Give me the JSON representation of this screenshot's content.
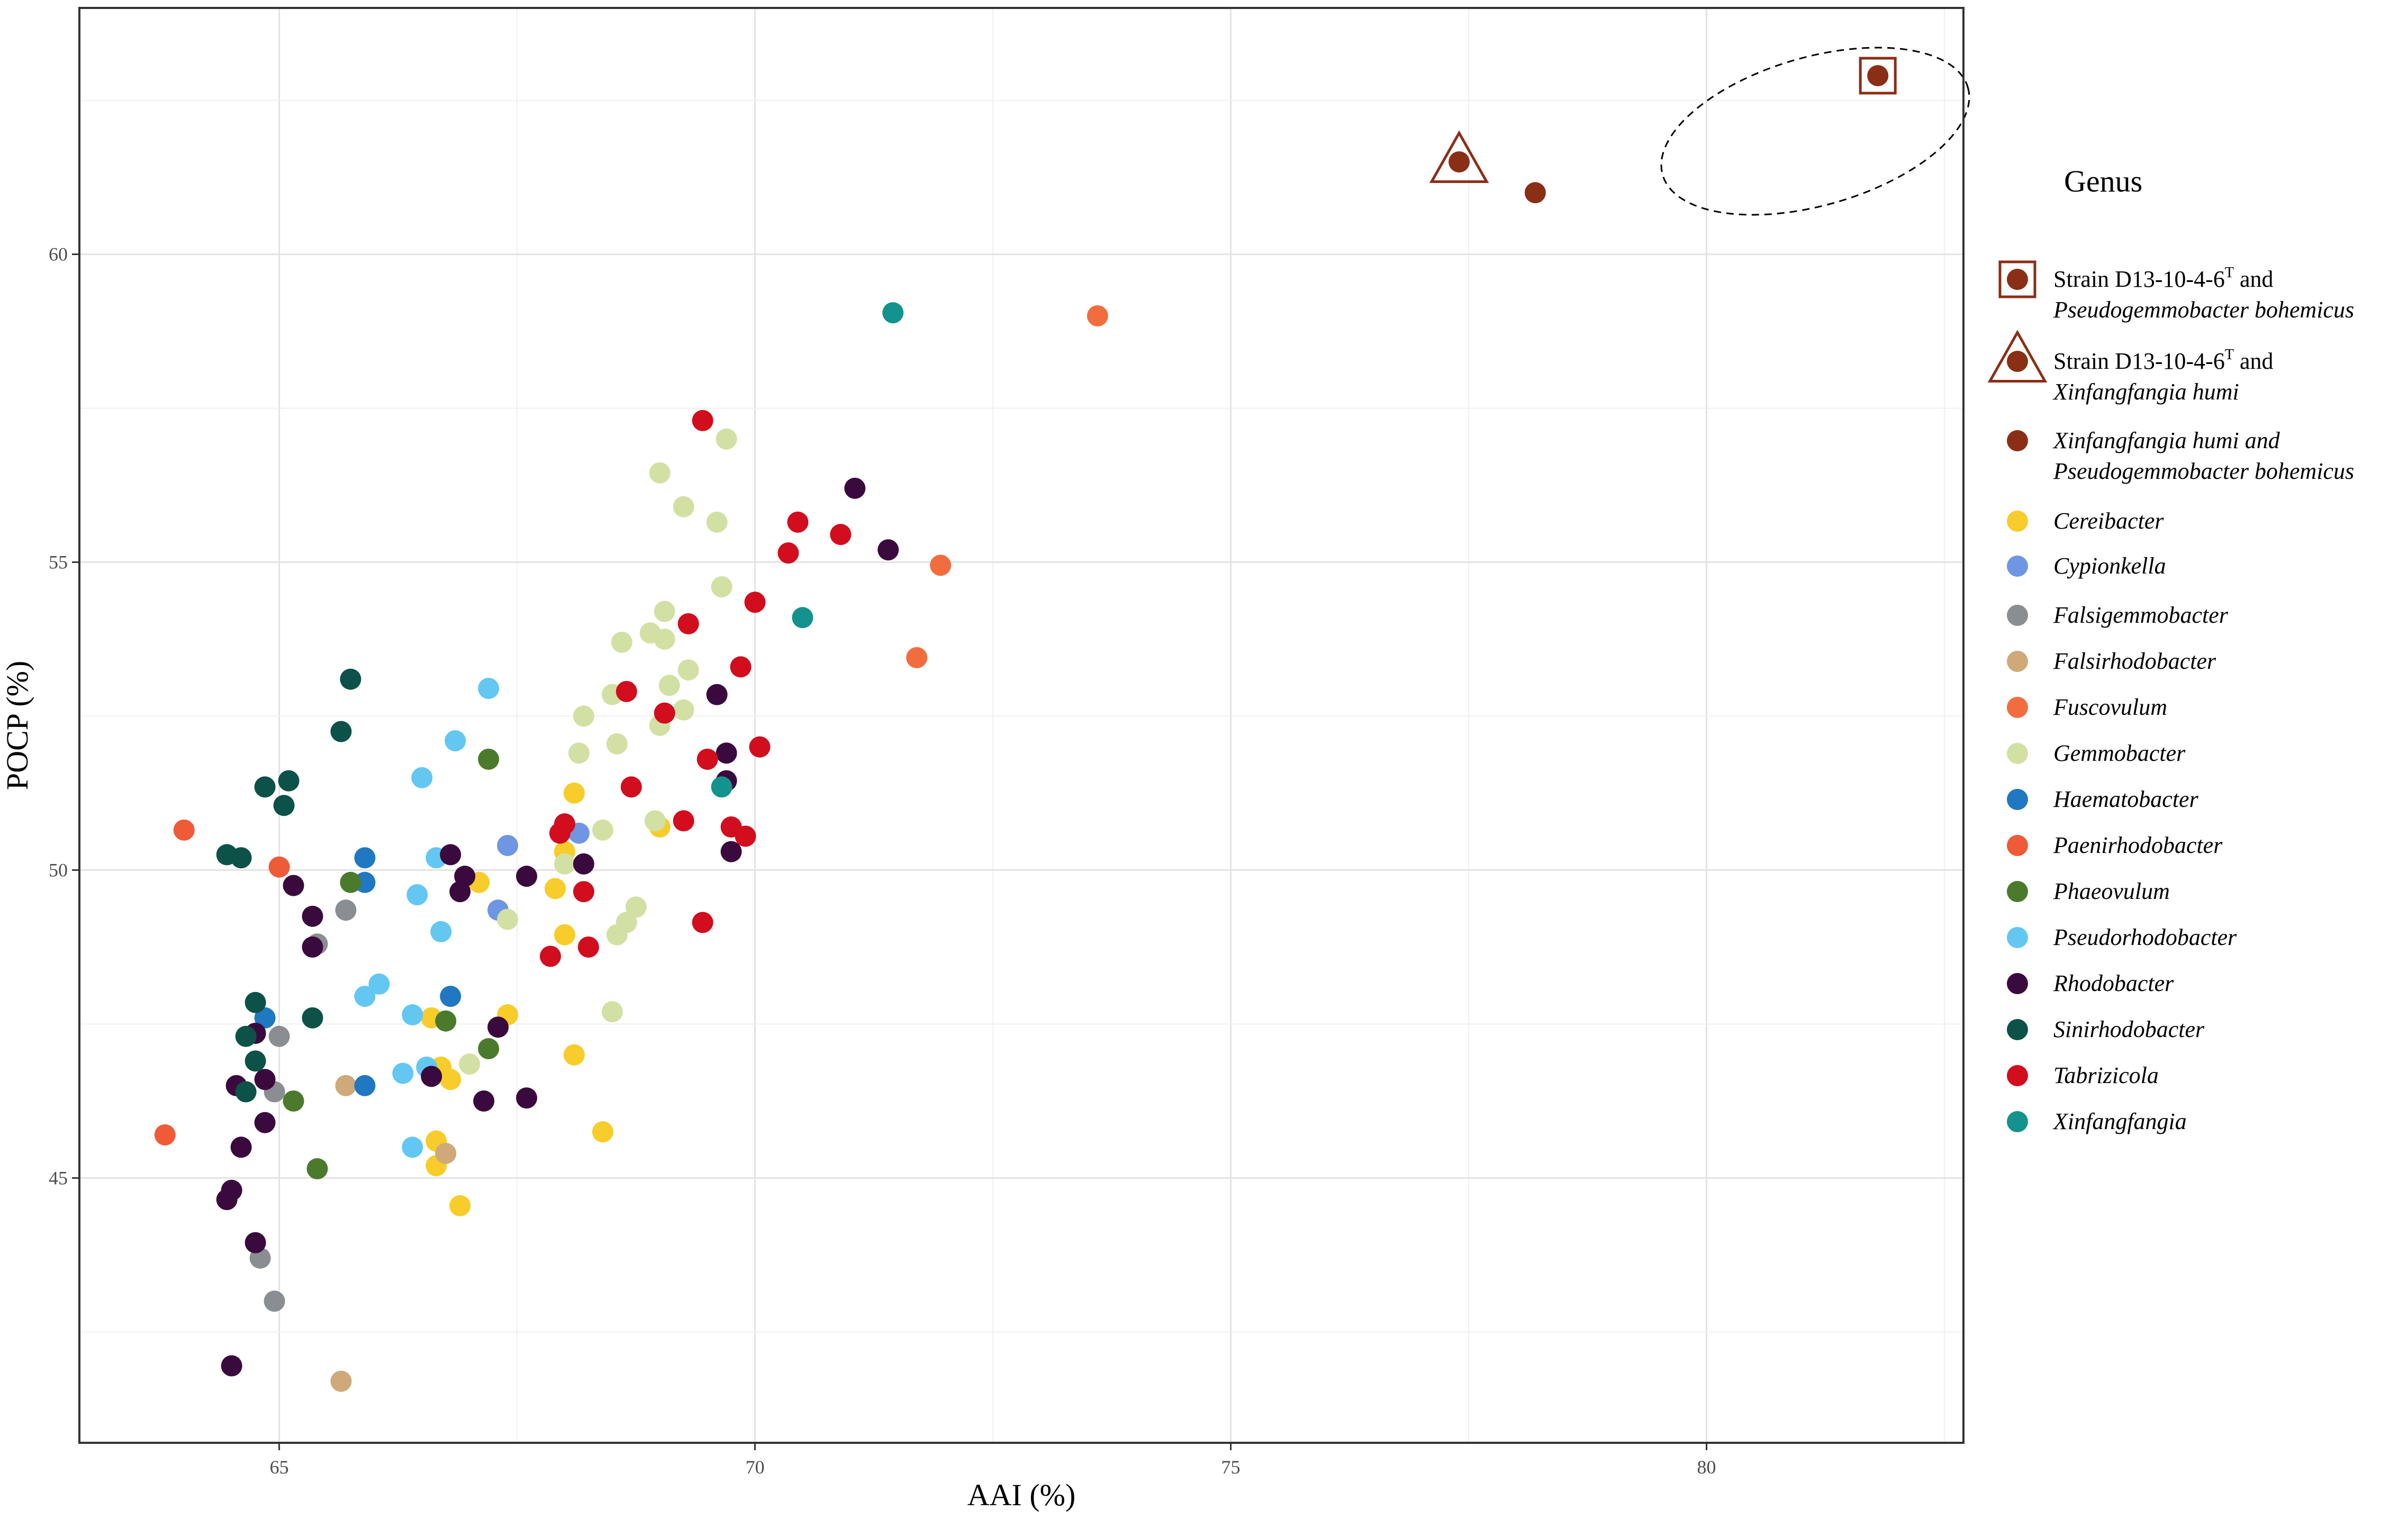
{
  "chart_data": {
    "type": "scatter",
    "xlabel": "AAI (%)",
    "ylabel": "POCP (%)",
    "xlim": [
      62.9,
      82.7
    ],
    "ylim": [
      40.7,
      64.0
    ],
    "xticks": [
      65,
      70,
      75,
      80
    ],
    "yticks": [
      45,
      50,
      55,
      60
    ],
    "grid": true,
    "legend": {
      "title": "Genus",
      "placement": "right",
      "entries": [
        {
          "marker": "square",
          "color": "#8b2e16",
          "line1": "Strain D13-10-4-6",
          "sup": "T",
          "line1_tail": " and",
          "line2": "Pseudogemmobacter bohemicus"
        },
        {
          "marker": "triangle",
          "color": "#8b2e16",
          "line1": "Strain D13-10-4-6",
          "sup": "T",
          "line1_tail": " and",
          "line2": "Xinfangfangia humi"
        },
        {
          "marker": "dot",
          "color": "#8b2e16",
          "line1": "Xinfangfangia humi and",
          "line2": "Pseudogemmobacter bohemicus"
        },
        {
          "marker": "dot",
          "color": "#f7cc2b",
          "line1": "Cereibacter"
        },
        {
          "marker": "dot",
          "color": "#6f96e2",
          "line1": "Cypionkella"
        },
        {
          "marker": "dot",
          "color": "#8a8d91",
          "line1": "Falsigemmobacter"
        },
        {
          "marker": "dot",
          "color": "#cfa97a",
          "line1": "Falsirhodobacter"
        },
        {
          "marker": "dot",
          "color": "#f26d3d",
          "line1": "Fuscovulum"
        },
        {
          "marker": "dot",
          "color": "#d3e0a3",
          "line1": "Gemmobacter"
        },
        {
          "marker": "dot",
          "color": "#1f78c1",
          "line1": "Haematobacter"
        },
        {
          "marker": "dot",
          "color": "#ef5a37",
          "line1": "Paenirhodobacter"
        },
        {
          "marker": "dot",
          "color": "#4b7a2c",
          "line1": "Phaeovulum"
        },
        {
          "marker": "dot",
          "color": "#63c7f2",
          "line1": "Pseudorhodobacter"
        },
        {
          "marker": "dot",
          "color": "#3a0a3e",
          "line1": "Rhodobacter"
        },
        {
          "marker": "dot",
          "color": "#0c5248",
          "line1": "Sinirhodobacter"
        },
        {
          "marker": "dot",
          "color": "#d10d1e",
          "line1": "Tabrizicola"
        },
        {
          "marker": "dot",
          "color": "#14928e",
          "line1": "Xinfangfangia"
        }
      ]
    },
    "series": [
      {
        "group": "Strain D13-10-4-6T and Pseudogemmobacter bohemicus",
        "color": "#8b2e16",
        "marker": "square",
        "points": [
          [
            81.8,
            62.9
          ]
        ]
      },
      {
        "group": "Strain D13-10-4-6T and Xinfangfangia humi",
        "color": "#8b2e16",
        "marker": "triangle",
        "points": [
          [
            77.4,
            61.5
          ]
        ]
      },
      {
        "group": "Xinfangfangia humi and Pseudogemmobacter bohemicus",
        "color": "#8b2e16",
        "marker": "dot",
        "points": [
          [
            78.2,
            61.0
          ]
        ]
      },
      {
        "group": "Cereibacter",
        "color": "#f7cc2b",
        "marker": "dot",
        "points": [
          [
            68.1,
            51.25
          ],
          [
            68.0,
            50.3
          ],
          [
            69.0,
            50.7
          ],
          [
            67.1,
            49.8
          ],
          [
            68.0,
            48.95
          ],
          [
            67.9,
            49.7
          ],
          [
            66.6,
            47.6
          ],
          [
            67.4,
            47.65
          ],
          [
            68.1,
            47.0
          ],
          [
            66.7,
            46.8
          ],
          [
            66.8,
            46.6
          ],
          [
            66.65,
            45.6
          ],
          [
            66.65,
            45.2
          ],
          [
            68.4,
            45.75
          ],
          [
            66.9,
            44.55
          ]
        ]
      },
      {
        "group": "Cypionkella",
        "color": "#6f96e2",
        "marker": "dot",
        "points": [
          [
            67.4,
            50.4
          ],
          [
            67.3,
            49.35
          ],
          [
            68.15,
            50.6
          ]
        ]
      },
      {
        "group": "Falsigemmobacter",
        "color": "#8a8d91",
        "marker": "dot",
        "points": [
          [
            65.7,
            49.35
          ],
          [
            65.4,
            48.8
          ],
          [
            65.0,
            47.3
          ],
          [
            64.95,
            46.4
          ],
          [
            64.8,
            43.7
          ],
          [
            64.95,
            43.0
          ]
        ]
      },
      {
        "group": "Falsirhodobacter",
        "color": "#cfa97a",
        "marker": "dot",
        "points": [
          [
            65.7,
            46.5
          ],
          [
            66.75,
            45.4
          ],
          [
            65.65,
            41.7
          ]
        ]
      },
      {
        "group": "Fuscovulum",
        "color": "#f26d3d",
        "marker": "dot",
        "points": [
          [
            73.6,
            59.0
          ],
          [
            71.95,
            54.95
          ],
          [
            71.7,
            53.45
          ]
        ]
      },
      {
        "group": "Gemmobacter",
        "color": "#d3e0a3",
        "marker": "dot",
        "points": [
          [
            69.7,
            57.0
          ],
          [
            69.0,
            56.45
          ],
          [
            69.25,
            55.9
          ],
          [
            69.6,
            55.65
          ],
          [
            69.65,
            54.6
          ],
          [
            69.05,
            54.2
          ],
          [
            68.9,
            53.85
          ],
          [
            68.6,
            53.7
          ],
          [
            69.05,
            53.75
          ],
          [
            69.3,
            53.25
          ],
          [
            69.1,
            53.0
          ],
          [
            68.5,
            52.85
          ],
          [
            68.2,
            52.5
          ],
          [
            69.25,
            52.6
          ],
          [
            69.0,
            52.35
          ],
          [
            68.55,
            52.05
          ],
          [
            68.15,
            51.9
          ],
          [
            68.4,
            50.65
          ],
          [
            68.95,
            50.8
          ],
          [
            68.0,
            50.1
          ],
          [
            67.4,
            49.2
          ],
          [
            68.75,
            49.4
          ],
          [
            68.65,
            49.15
          ],
          [
            68.55,
            48.95
          ],
          [
            68.5,
            47.7
          ],
          [
            67.0,
            46.85
          ]
        ]
      },
      {
        "group": "Haematobacter",
        "color": "#1f78c1",
        "marker": "dot",
        "points": [
          [
            65.9,
            50.2
          ],
          [
            65.9,
            49.8
          ],
          [
            66.8,
            47.95
          ],
          [
            64.85,
            47.6
          ],
          [
            65.9,
            46.5
          ]
        ]
      },
      {
        "group": "Paenirhodobacter",
        "color": "#ef5a37",
        "marker": "dot",
        "points": [
          [
            64.0,
            50.65
          ],
          [
            65.0,
            50.05
          ],
          [
            63.8,
            45.7
          ]
        ]
      },
      {
        "group": "Phaeovulum",
        "color": "#4b7a2c",
        "marker": "dot",
        "points": [
          [
            67.2,
            51.8
          ],
          [
            65.75,
            49.8
          ],
          [
            66.75,
            47.55
          ],
          [
            67.2,
            47.1
          ],
          [
            65.15,
            46.25
          ],
          [
            65.4,
            45.15
          ]
        ]
      },
      {
        "group": "Pseudorhodobacter",
        "color": "#63c7f2",
        "marker": "dot",
        "points": [
          [
            67.2,
            52.95
          ],
          [
            66.85,
            52.1
          ],
          [
            66.5,
            51.5
          ],
          [
            66.65,
            50.2
          ],
          [
            66.45,
            49.6
          ],
          [
            66.7,
            49.0
          ],
          [
            66.05,
            48.15
          ],
          [
            65.9,
            47.95
          ],
          [
            66.4,
            47.65
          ],
          [
            66.55,
            46.8
          ],
          [
            66.3,
            46.7
          ],
          [
            66.4,
            45.5
          ]
        ]
      },
      {
        "group": "Rhodobacter",
        "color": "#3a0a3e",
        "marker": "dot",
        "points": [
          [
            71.05,
            56.2
          ],
          [
            71.4,
            55.2
          ],
          [
            69.6,
            52.85
          ],
          [
            69.7,
            51.9
          ],
          [
            69.7,
            51.45
          ],
          [
            69.75,
            50.3
          ],
          [
            66.8,
            50.25
          ],
          [
            66.95,
            49.9
          ],
          [
            66.9,
            49.65
          ],
          [
            67.6,
            49.9
          ],
          [
            68.2,
            50.1
          ],
          [
            65.15,
            49.75
          ],
          [
            65.35,
            49.25
          ],
          [
            65.35,
            48.75
          ],
          [
            64.75,
            47.35
          ],
          [
            67.3,
            47.45
          ],
          [
            66.6,
            46.65
          ],
          [
            64.85,
            46.6
          ],
          [
            64.55,
            46.5
          ],
          [
            67.15,
            46.25
          ],
          [
            67.6,
            46.3
          ],
          [
            64.85,
            45.9
          ],
          [
            64.6,
            45.5
          ],
          [
            64.5,
            44.8
          ],
          [
            64.45,
            44.65
          ],
          [
            64.75,
            43.95
          ],
          [
            64.5,
            41.95
          ]
        ]
      },
      {
        "group": "Sinirhodobacter",
        "color": "#0c5248",
        "marker": "dot",
        "points": [
          [
            65.75,
            53.1
          ],
          [
            65.65,
            52.25
          ],
          [
            65.1,
            51.45
          ],
          [
            64.85,
            51.35
          ],
          [
            65.05,
            51.05
          ],
          [
            64.45,
            50.25
          ],
          [
            64.6,
            50.2
          ],
          [
            64.75,
            47.85
          ],
          [
            65.35,
            47.6
          ],
          [
            64.65,
            47.3
          ],
          [
            64.75,
            46.9
          ],
          [
            64.65,
            46.4
          ]
        ]
      },
      {
        "group": "Tabrizicola",
        "color": "#d10d1e",
        "marker": "dot",
        "points": [
          [
            69.45,
            57.3
          ],
          [
            70.45,
            55.65
          ],
          [
            70.9,
            55.45
          ],
          [
            70.35,
            55.15
          ],
          [
            70.0,
            54.35
          ],
          [
            69.3,
            54.0
          ],
          [
            69.85,
            53.3
          ],
          [
            68.65,
            52.9
          ],
          [
            69.05,
            52.55
          ],
          [
            70.05,
            52.0
          ],
          [
            69.5,
            51.8
          ],
          [
            68.7,
            51.35
          ],
          [
            69.25,
            50.8
          ],
          [
            69.75,
            50.7
          ],
          [
            69.9,
            50.55
          ],
          [
            67.95,
            50.6
          ],
          [
            68.0,
            50.75
          ],
          [
            68.2,
            49.65
          ],
          [
            69.45,
            49.15
          ],
          [
            67.85,
            48.6
          ],
          [
            68.25,
            48.75
          ]
        ]
      },
      {
        "group": "Xinfangfangia",
        "color": "#14928e",
        "marker": "dot",
        "points": [
          [
            71.45,
            59.05
          ],
          [
            70.5,
            54.1
          ],
          [
            69.65,
            51.35
          ]
        ]
      }
    ]
  }
}
